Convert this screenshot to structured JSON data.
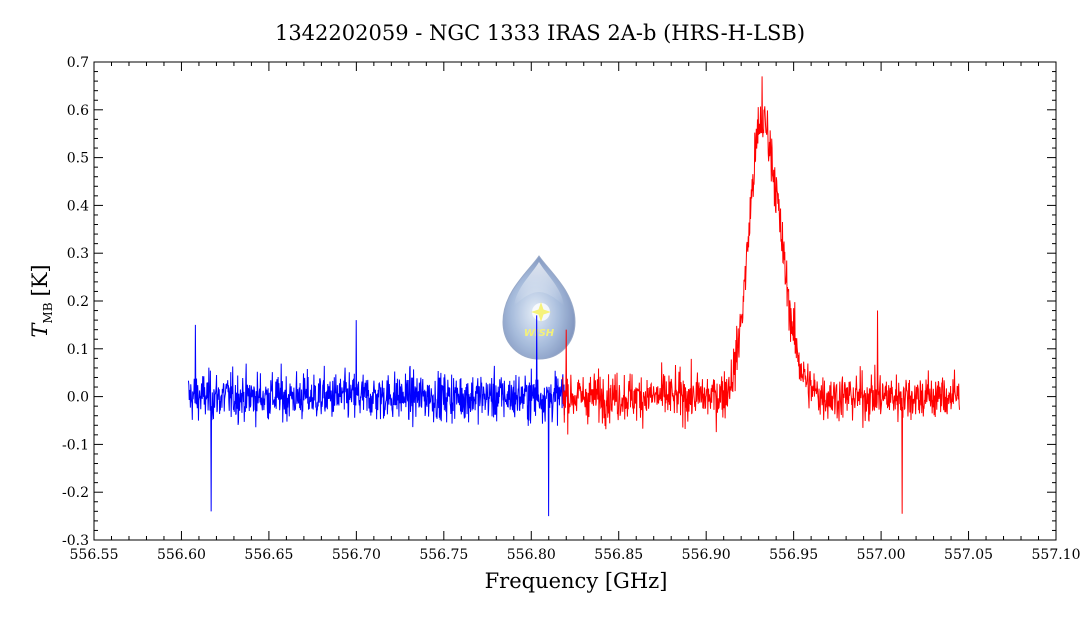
{
  "chart_data": {
    "type": "line",
    "title": "1342202059 - NGC 1333 IRAS 2A-b (HRS-H-LSB)",
    "xlabel": "Frequency [GHz]",
    "ylabel_main": "T",
    "ylabel_sub": "MB",
    "ylabel_unit": "[K]",
    "xlim": [
      556.55,
      557.1
    ],
    "ylim": [
      -0.3,
      0.7
    ],
    "xticks": [
      "556.55",
      "556.60",
      "556.65",
      "556.70",
      "556.75",
      "556.80",
      "556.85",
      "556.90",
      "556.95",
      "557.00",
      "557.05",
      "557.10"
    ],
    "yticks": [
      "-0.3",
      "-0.2",
      "-0.1",
      "0.0",
      "0.1",
      "0.2",
      "0.3",
      "0.4",
      "0.5",
      "0.6",
      "0.7"
    ],
    "grid": false,
    "series": [
      {
        "color": "#0000ff",
        "x_start": 556.604,
        "x_end": 556.82,
        "noise_sigma": 0.05,
        "extremes": [
          [
            556.608,
            0.15
          ],
          [
            556.617,
            -0.24
          ],
          [
            556.7,
            0.16
          ],
          [
            556.81,
            -0.25
          ],
          [
            556.803,
            0.17
          ]
        ]
      },
      {
        "color": "#ff0000",
        "x_start": 556.818,
        "x_end": 557.045,
        "noise_sigma": 0.05,
        "peak_center": 556.932,
        "peak_value": 0.67,
        "extremes": [
          [
            556.998,
            0.18
          ],
          [
            557.012,
            -0.245
          ],
          [
            556.82,
            0.14
          ]
        ]
      }
    ]
  },
  "logo": {
    "text": "WISH",
    "icon": "star-drop-icon"
  }
}
